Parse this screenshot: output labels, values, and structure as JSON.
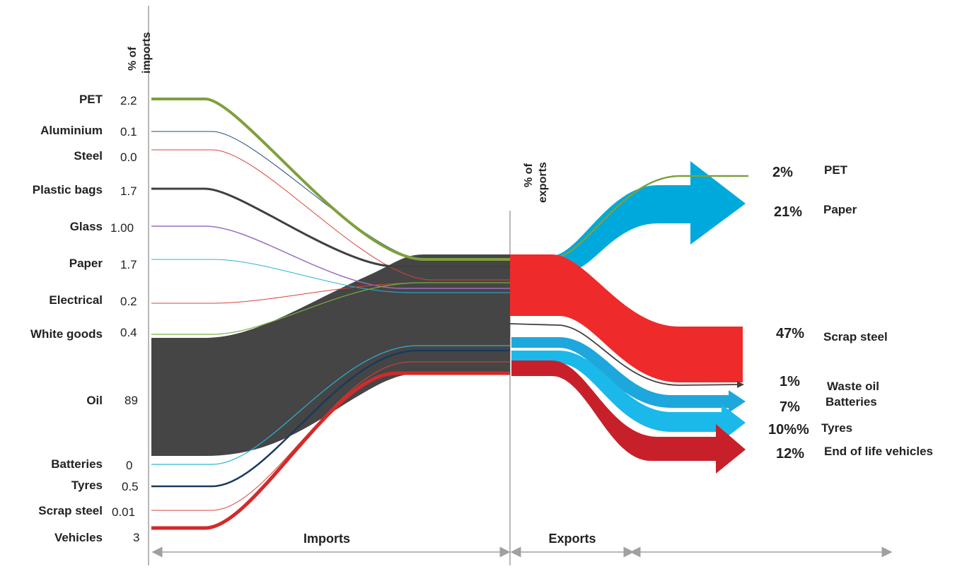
{
  "imports_axis_title": [
    "% of",
    "imports"
  ],
  "exports_axis_title": [
    "% of",
    "exports"
  ],
  "imports": [
    {
      "label": "PET",
      "value": "2.2",
      "color": "#7f9f3d"
    },
    {
      "label": "Aluminium",
      "value": "0.1",
      "color": "#1f4f7f"
    },
    {
      "label": "Steel",
      "value": "0.0",
      "color": "#d9433a"
    },
    {
      "label": "Plastic bags",
      "value": "1.7",
      "color": "#404040"
    },
    {
      "label": "Glass",
      "value": "1.00",
      "color": "#9a6fbf"
    },
    {
      "label": "Paper",
      "value": "1.7",
      "color": "#2bb3d6"
    },
    {
      "label": "Electrical",
      "value": "0.2",
      "color": "#d9433a"
    },
    {
      "label": "White goods",
      "value": "0.4",
      "color": "#7aae3f"
    },
    {
      "label": "Oil",
      "value": "89",
      "color": "#454545"
    },
    {
      "label": "Batteries",
      "value": "0",
      "color": "#2bb3d6"
    },
    {
      "label": "Tyres",
      "value": "0.5",
      "color": "#1a3a5c"
    },
    {
      "label": "Scrap steel",
      "value": "0.01",
      "color": "#d9433a"
    },
    {
      "label": "Vehicles",
      "value": "3",
      "color": "#d22a2a"
    }
  ],
  "exports": [
    {
      "label": "PET",
      "pct": "2%",
      "color": "#7f9f3d"
    },
    {
      "label": "Paper",
      "pct": "21%",
      "color": "#00a9dc"
    },
    {
      "label": "Scrap steel",
      "pct": "47%",
      "color": "#ee2a2a"
    },
    {
      "label": "Waste oil",
      "pct": "1%",
      "color": "#404040"
    },
    {
      "label": "Batteries",
      "pct": "7%",
      "color": "#1ea7dc"
    },
    {
      "label": "Tyres",
      "pct": "10%%",
      "color": "#1ab9ea"
    },
    {
      "label": "End of life vehicles",
      "pct": "12%",
      "color": "#c8202a"
    }
  ],
  "section_labels": {
    "imports": "Imports",
    "exports": "Exports"
  }
}
